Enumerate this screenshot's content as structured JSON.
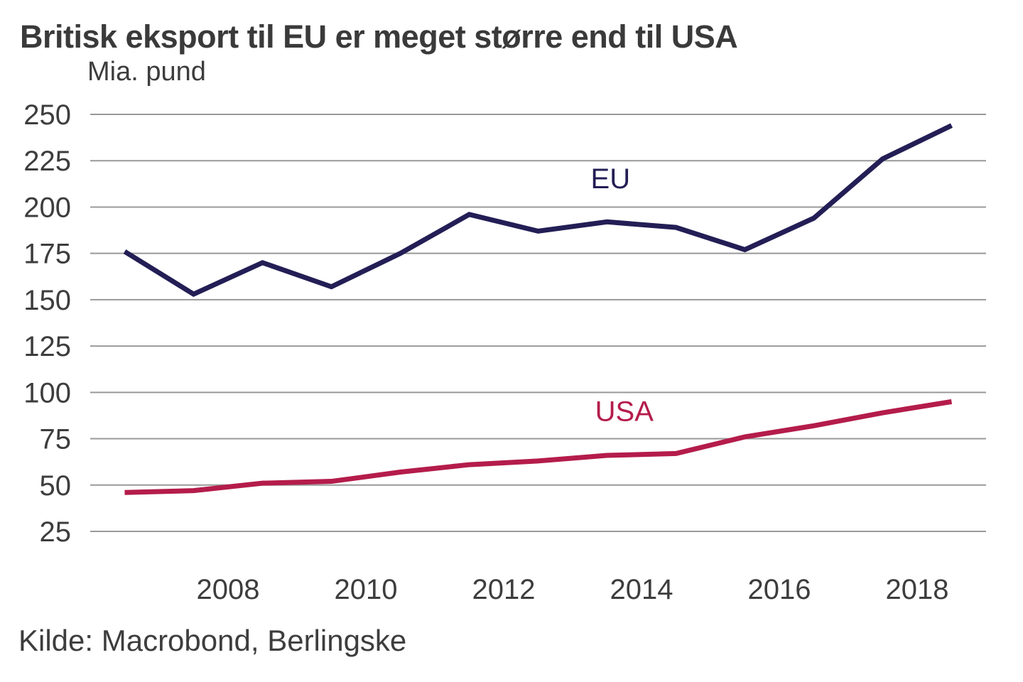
{
  "header": {
    "title": "Britisk eksport til EU er meget større end til USA",
    "unit_label": "Mia. pund"
  },
  "footer": {
    "source": "Kilde: Macrobond, Berlingske"
  },
  "colors": {
    "eu": "#231e55",
    "usa": "#b41c4b",
    "grid": "#999999",
    "text": "#3d3d3d",
    "background": "#ffffff"
  },
  "chart_data": {
    "type": "line",
    "title": "Britisk eksport til EU er meget større end til USA",
    "ylabel": "Mia. pund",
    "source": "Kilde: Macrobond, Berlingske",
    "x": [
      2006,
      2007,
      2008,
      2009,
      2010,
      2011,
      2012,
      2013,
      2014,
      2015,
      2016,
      2017,
      2018
    ],
    "series": [
      {
        "name": "EU",
        "color_key": "eu",
        "values": [
          176,
          153,
          170,
          157,
          175,
          196,
          187,
          192,
          189,
          177,
          194,
          226,
          244
        ]
      },
      {
        "name": "USA",
        "color_key": "usa",
        "values": [
          46,
          47,
          51,
          52,
          57,
          61,
          63,
          66,
          67,
          76,
          82,
          89,
          95
        ]
      }
    ],
    "ylim": [
      25,
      250
    ],
    "yticks": [
      250,
      225,
      200,
      175,
      150,
      125,
      100,
      75,
      50,
      25
    ],
    "xlim": [
      2006,
      2019
    ],
    "xticks": [
      2008,
      2010,
      2012,
      2014,
      2016,
      2018
    ],
    "points_at_mid_year": true,
    "grid": "horizontal-only",
    "legend_position": "inline-annotations",
    "annotations": [
      {
        "text": "EU",
        "year": 2013.55,
        "value": 215.5,
        "color_key": "eu"
      },
      {
        "text": "USA",
        "year": 2013.75,
        "value": 90,
        "color_key": "usa"
      }
    ]
  }
}
